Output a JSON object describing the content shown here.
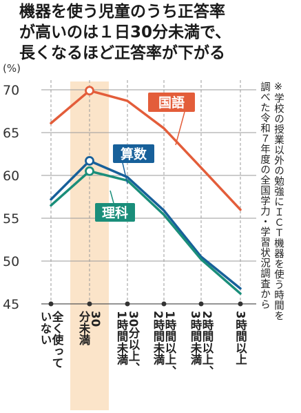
{
  "title_lines": [
    "機器を使う児童のうち正答率",
    "が高いのは１日30分未満で、",
    "長くなるほど正答率が下がる"
  ],
  "note": "※学校の授業以外の勉強にＩＣＴ機器を使う時間を\n調べた令和７年度の全国学力・学習状況調査から",
  "colors": {
    "kokugo": "#e35d3a",
    "sansu": "#17609a",
    "rika": "#1a8e7a",
    "highlight": "#fbe4c9",
    "kokugo_label_bg": "#e35d3a",
    "sansu_label_bg": "#17609a",
    "rika_label_bg": "#1a8e7a"
  },
  "chart_data": {
    "type": "line",
    "ylabel": "(%)",
    "ylim": [
      45,
      70
    ],
    "yticks": [
      45,
      50,
      55,
      60,
      65,
      70
    ],
    "categories": [
      "全く使っていない",
      "30分未満",
      "1時間未満",
      "1時間以上、2時間未満",
      "2時間以上、3時間未満",
      "3時間以上"
    ],
    "category_labels": [
      [
        "全く使って",
        "いない"
      ],
      [
        "30",
        "分未満"
      ],
      [
        "30分以上、",
        "1時間未満"
      ],
      [
        "1時間以上、",
        "2時間未満"
      ],
      [
        "2時間以上、",
        "3時間未満"
      ],
      [
        "3時間以上"
      ]
    ],
    "highlight_category": "30分未満",
    "series": [
      {
        "name": "国語",
        "color_key": "kokugo",
        "values": [
          66.1,
          69.9,
          68.7,
          65.5,
          60.9,
          56.0
        ]
      },
      {
        "name": "算数",
        "color_key": "sansu",
        "values": [
          57.2,
          61.7,
          59.8,
          55.9,
          50.5,
          46.8
        ]
      },
      {
        "name": "理科",
        "color_key": "rika",
        "values": [
          56.5,
          60.5,
          59.4,
          55.4,
          50.2,
          46.2
        ]
      }
    ]
  }
}
